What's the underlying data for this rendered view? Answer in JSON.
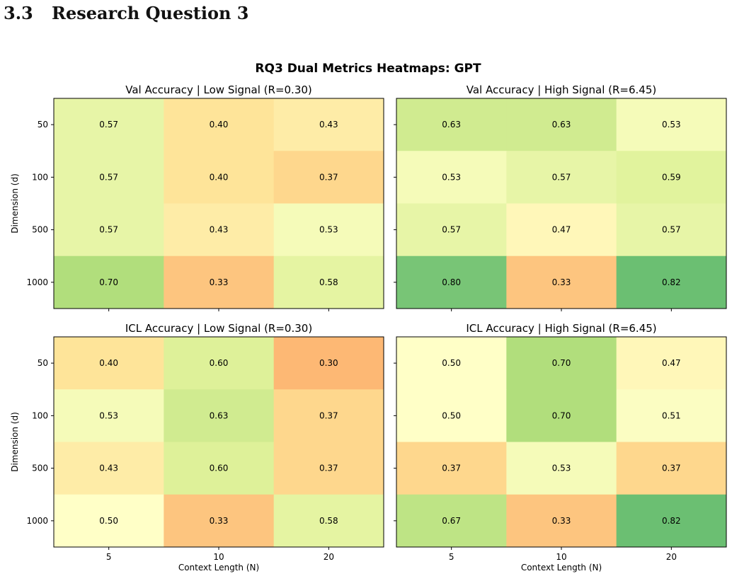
{
  "section": {
    "number": "3.3",
    "title": "Research Question 3"
  },
  "chart_data": {
    "type": "heatmap",
    "title": "RQ3 Dual Metrics Heatmaps: GPT",
    "xlabel": "Context Length (N)",
    "ylabel": "Dimension (d)",
    "x_categories": [
      "5",
      "10",
      "20"
    ],
    "y_categories": [
      "50",
      "100",
      "500",
      "1000"
    ],
    "colormap": "RdYlGn",
    "color_range": [
      0.0,
      1.0
    ],
    "panels": [
      {
        "title": "Val Accuracy | Low Signal (R=0.30)",
        "values": [
          [
            0.57,
            0.4,
            0.43
          ],
          [
            0.57,
            0.4,
            0.37
          ],
          [
            0.57,
            0.43,
            0.53
          ],
          [
            0.7,
            0.33,
            0.58
          ]
        ],
        "labels": [
          [
            "0.57",
            "0.40",
            "0.43"
          ],
          [
            "0.57",
            "0.40",
            "0.37"
          ],
          [
            "0.57",
            "0.43",
            "0.53"
          ],
          [
            "0.70",
            "0.33",
            "0.58"
          ]
        ]
      },
      {
        "title": "Val Accuracy | High Signal (R=6.45)",
        "values": [
          [
            0.63,
            0.63,
            0.53
          ],
          [
            0.53,
            0.57,
            0.59
          ],
          [
            0.57,
            0.47,
            0.57
          ],
          [
            0.8,
            0.33,
            0.82
          ]
        ],
        "labels": [
          [
            "0.63",
            "0.63",
            "0.53"
          ],
          [
            "0.53",
            "0.57",
            "0.59"
          ],
          [
            "0.57",
            "0.47",
            "0.57"
          ],
          [
            "0.80",
            "0.33",
            "0.82"
          ]
        ]
      },
      {
        "title": "ICL Accuracy | Low Signal (R=0.30)",
        "values": [
          [
            0.4,
            0.6,
            0.3
          ],
          [
            0.53,
            0.63,
            0.37
          ],
          [
            0.43,
            0.6,
            0.37
          ],
          [
            0.5,
            0.33,
            0.58
          ]
        ],
        "labels": [
          [
            "0.40",
            "0.60",
            "0.30"
          ],
          [
            "0.53",
            "0.63",
            "0.37"
          ],
          [
            "0.43",
            "0.60",
            "0.37"
          ],
          [
            "0.50",
            "0.33",
            "0.58"
          ]
        ]
      },
      {
        "title": "ICL Accuracy | High Signal (R=6.45)",
        "values": [
          [
            0.5,
            0.7,
            0.47
          ],
          [
            0.5,
            0.7,
            0.51
          ],
          [
            0.37,
            0.53,
            0.37
          ],
          [
            0.67,
            0.33,
            0.82
          ]
        ],
        "labels": [
          [
            "0.50",
            "0.70",
            "0.47"
          ],
          [
            "0.50",
            "0.70",
            "0.51"
          ],
          [
            "0.37",
            "0.53",
            "0.37"
          ],
          [
            "0.67",
            "0.33",
            "0.82"
          ]
        ]
      }
    ]
  }
}
